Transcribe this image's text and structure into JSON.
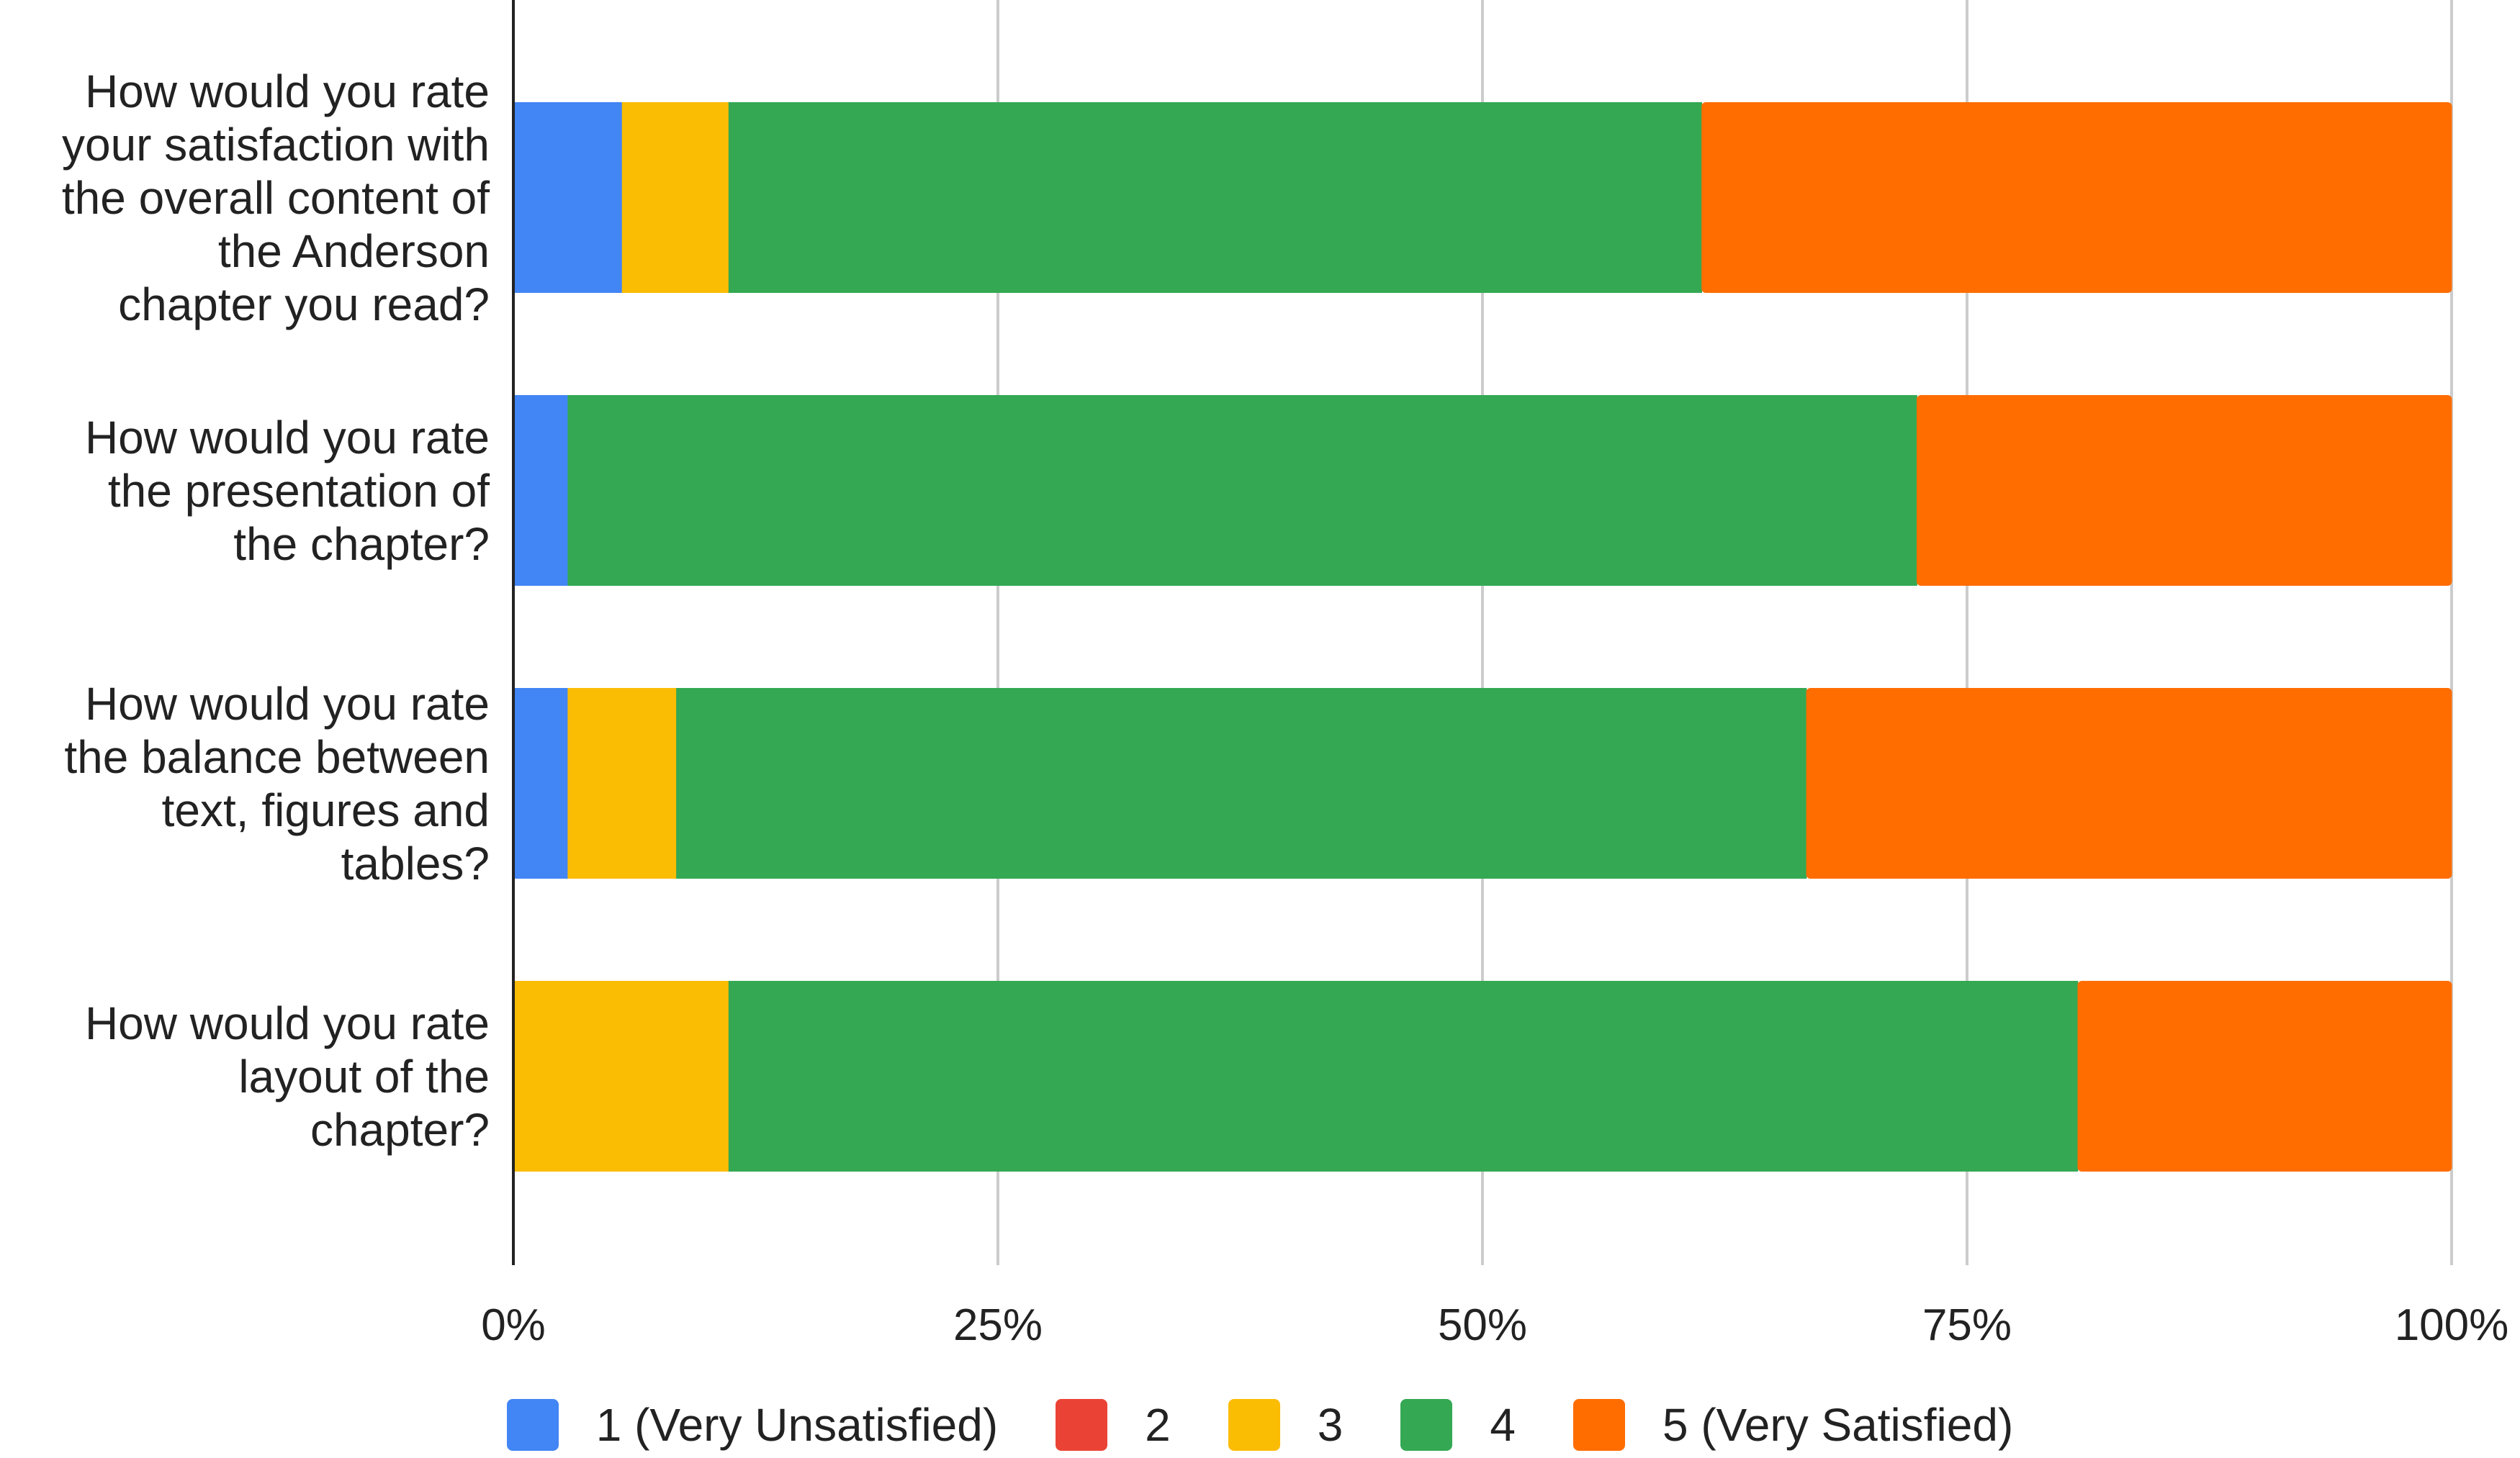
{
  "chart_data": {
    "type": "bar",
    "orientation": "horizontal",
    "stacked": "percent",
    "categories": [
      "How would you rate your satisfaction with the overall content of the Anderson chapter you read?",
      "How would you rate the presentation of the chapter?",
      "How would you rate the balance between text, figures and tables?",
      "How would you rate layout of the chapter?"
    ],
    "category_lines": [
      [
        "How would you rate",
        "your satisfaction with",
        "the overall content of",
        "the Anderson",
        "chapter you read?"
      ],
      [
        "How would you rate",
        "the presentation of",
        "the chapter?"
      ],
      [
        "How would you rate",
        "the balance between",
        "text, figures and",
        "tables?"
      ],
      [
        "How would you rate",
        "layout of the",
        "chapter?"
      ]
    ],
    "series": [
      {
        "name": "1 (Very Unsatisfied)",
        "color": "#4285F4",
        "values": [
          5.6,
          2.8,
          2.8,
          0
        ]
      },
      {
        "name": "2",
        "color": "#EA4335",
        "values": [
          0,
          0,
          0,
          0
        ]
      },
      {
        "name": "3",
        "color": "#FBBC04",
        "values": [
          5.5,
          0,
          5.6,
          11.1
        ]
      },
      {
        "name": "4",
        "color": "#34A853",
        "values": [
          50.2,
          69.6,
          58.3,
          69.6
        ]
      },
      {
        "name": "5 (Very Satisfied)",
        "color": "#FF6D01",
        "values": [
          38.7,
          27.6,
          33.3,
          19.3
        ]
      }
    ],
    "x_ticks": [
      "0%",
      "25%",
      "50%",
      "75%",
      "100%"
    ],
    "xlim": [
      0,
      100
    ],
    "xlabel": "",
    "ylabel": "",
    "title": "",
    "grid": true,
    "legend_position": "bottom"
  }
}
